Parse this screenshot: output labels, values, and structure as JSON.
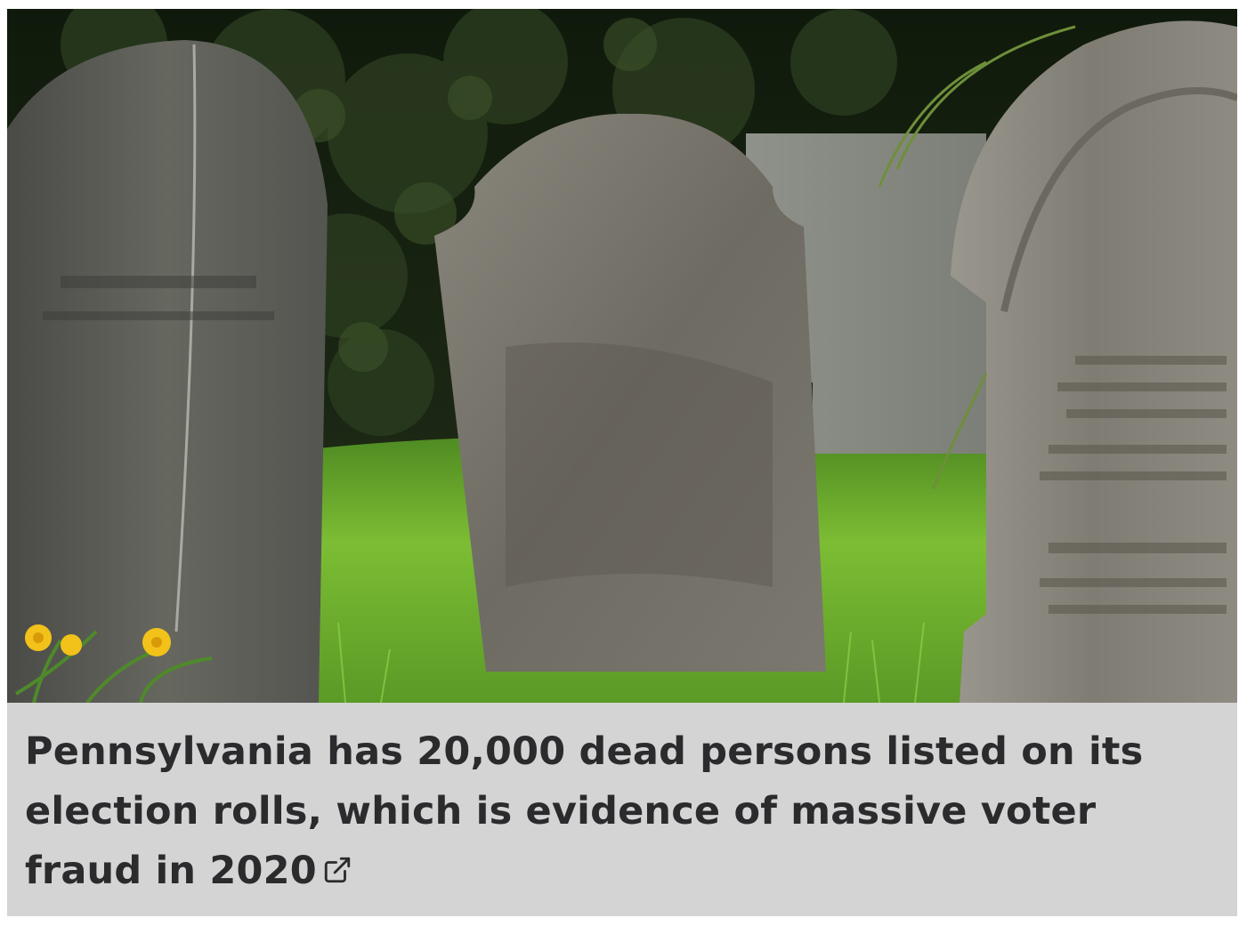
{
  "article": {
    "headline": "Pennsylvania has 20,000 dead persons listed on its election rolls, which is evidence of massive voter fraud in 2020",
    "link_icon": "external-link-icon",
    "image_subject": "graveyard-photo"
  },
  "colors": {
    "caption_background": "#d4d4d4",
    "headline_text": "#2b2b2e",
    "foliage_dark": "#1e2a16",
    "grass": "#6fae2e",
    "stone": "#6b6a66",
    "daffodil": "#f2c21a"
  }
}
